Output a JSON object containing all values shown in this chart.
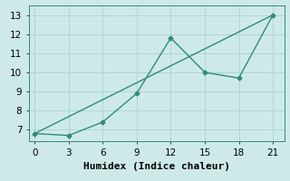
{
  "xlabel": "Humidex (Indice chaleur)",
  "ylabel": "",
  "line1_x": [
    0,
    3,
    6,
    9,
    12,
    15,
    18,
    21
  ],
  "line1_y": [
    6.8,
    6.7,
    7.4,
    8.9,
    11.8,
    10.0,
    9.7,
    13.0
  ],
  "line2_x": [
    0,
    21
  ],
  "line2_y": [
    6.8,
    13.0
  ],
  "line_color": "#2e8b7a",
  "background_color": "#ceeae8",
  "grid_color": "#b0d5d2",
  "xlim": [
    -0.5,
    22
  ],
  "ylim": [
    6.4,
    13.5
  ],
  "xticks": [
    0,
    3,
    6,
    9,
    12,
    15,
    18,
    21
  ],
  "yticks": [
    7,
    8,
    9,
    10,
    11,
    12,
    13
  ],
  "fontsize_label": 8,
  "fontsize_tick": 7.5
}
